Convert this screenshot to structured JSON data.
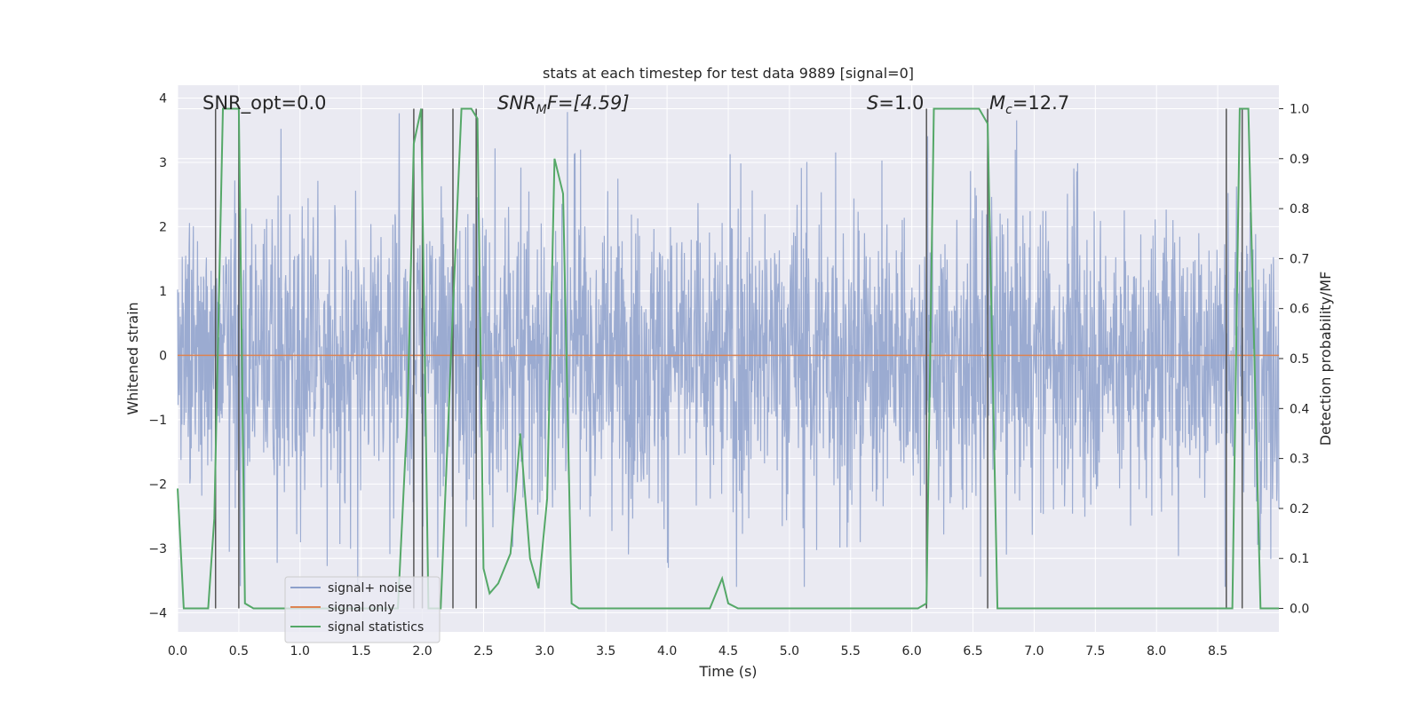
{
  "chart_data": {
    "type": "line",
    "title": "stats at each timestep for test data 9889 [signal=0]",
    "xlabel": "Time (s)",
    "ylabel_left": "Whitened strain",
    "ylabel_right": "Detection probability/MF",
    "xlim": [
      0.0,
      9.0
    ],
    "ylim_left": [
      -4.3,
      4.2
    ],
    "ylim_right": [
      -0.047,
      1.047
    ],
    "xticks": [
      "0.0",
      "0.5",
      "1.0",
      "1.5",
      "2.0",
      "2.5",
      "3.0",
      "3.5",
      "4.0",
      "4.5",
      "5.0",
      "5.5",
      "6.0",
      "6.5",
      "7.0",
      "7.5",
      "8.0",
      "8.5"
    ],
    "yticks_left": [
      "4",
      "3",
      "2",
      "1",
      "0",
      "−1",
      "−2",
      "−3",
      "−4"
    ],
    "yticks_right": [
      "1.0",
      "0.9",
      "0.8",
      "0.7",
      "0.6",
      "0.5",
      "0.4",
      "0.3",
      "0.2",
      "0.1",
      "0.0"
    ],
    "annotations": {
      "snr_opt": "SNR_opt=0.0",
      "snr_mf_prefix": "SNR",
      "snr_mf_sub": "M",
      "snr_mf_rest": "F=[4.59]",
      "s_var": "S",
      "s_rest": "=1.0",
      "mc_var": "M",
      "mc_sub": "c",
      "mc_rest": "=12.7"
    },
    "legend": {
      "position": "lower-left",
      "entries": [
        "signal+ noise",
        "signal only",
        "signal statistics"
      ]
    },
    "colors": {
      "noise": "#8da0cb",
      "signal": "#dd8452",
      "stats": "#55a868",
      "vlines": "#555555",
      "panel": "#eaeaf2",
      "grid": "#ffffff"
    },
    "series": [
      {
        "name": "signal+ noise",
        "axis": "left",
        "description_range": [
          -3.6,
          3.8
        ],
        "envelope_upper": [
          2.2,
          2.6,
          2.5,
          2.4,
          2.4,
          2.5,
          2.6,
          2.5,
          2.5,
          2.5,
          2.6,
          2.5,
          2.4,
          2.5,
          2.6,
          2.4,
          2.5,
          2.5
        ]
      },
      {
        "name": "signal only",
        "axis": "left",
        "x": [
          0.0,
          9.0
        ],
        "y": [
          0.0,
          0.0
        ]
      },
      {
        "name": "signal statistics",
        "axis": "right",
        "x": [
          0.0,
          0.05,
          0.25,
          0.3,
          0.37,
          0.5,
          0.55,
          0.62,
          0.7,
          1.8,
          1.88,
          1.93,
          1.99,
          2.05,
          2.15,
          2.25,
          2.32,
          2.4,
          2.45,
          2.5,
          2.55,
          2.62,
          2.72,
          2.8,
          2.88,
          2.95,
          3.02,
          3.08,
          3.15,
          3.22,
          3.28,
          3.4,
          4.35,
          4.45,
          4.5,
          4.58,
          4.65,
          6.05,
          6.12,
          6.18,
          6.55,
          6.62,
          6.7,
          7.25,
          8.55,
          8.62,
          8.68,
          8.75,
          8.85,
          9.0
        ],
        "y": [
          0.24,
          0.0,
          0.0,
          0.18,
          1.0,
          1.0,
          0.01,
          0.0,
          0.0,
          0.0,
          0.4,
          0.93,
          1.0,
          0.0,
          0.0,
          0.6,
          1.0,
          1.0,
          0.98,
          0.08,
          0.03,
          0.05,
          0.11,
          0.35,
          0.1,
          0.04,
          0.22,
          0.9,
          0.83,
          0.01,
          0.0,
          0.0,
          0.0,
          0.06,
          0.01,
          0.0,
          0.0,
          0.0,
          0.01,
          1.0,
          1.0,
          0.97,
          0.0,
          0.0,
          0.0,
          0.0,
          1.0,
          1.0,
          0.0,
          0.0
        ]
      }
    ],
    "vertical_lines_x": [
      0.31,
      0.5,
      1.93,
      2.0,
      2.25,
      2.44,
      6.12,
      6.62,
      8.57,
      8.7
    ]
  }
}
